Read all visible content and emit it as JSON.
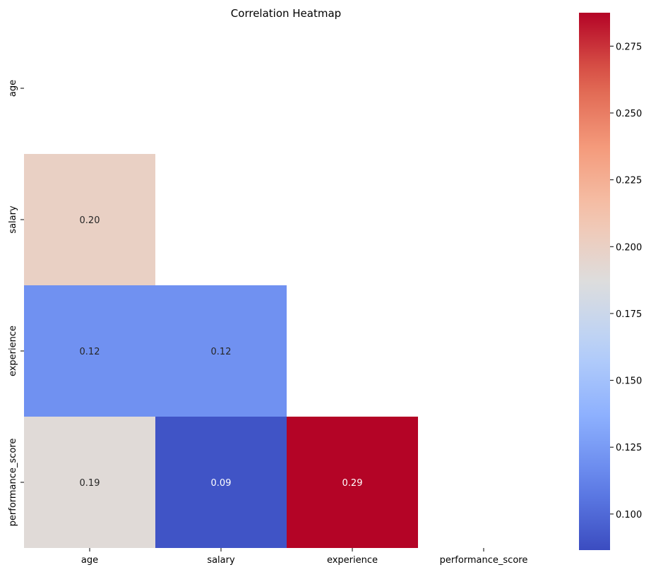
{
  "chart_data": {
    "type": "heatmap",
    "title": "Correlation Heatmap",
    "xlabel": "",
    "ylabel": "",
    "x_categories": [
      "age",
      "salary",
      "experience",
      "performance_score"
    ],
    "y_categories": [
      "age",
      "salary",
      "experience",
      "performance_score"
    ],
    "values": [
      [
        null,
        null,
        null,
        null
      ],
      [
        0.2,
        null,
        null,
        null
      ],
      [
        0.12,
        0.12,
        null,
        null
      ],
      [
        0.19,
        0.09,
        0.29,
        null
      ]
    ],
    "annotations": [
      [
        null,
        null,
        null,
        null
      ],
      [
        "0.20",
        null,
        null,
        null
      ],
      [
        "0.12",
        "0.12",
        null,
        null
      ],
      [
        "0.19",
        "0.09",
        "0.29",
        null
      ]
    ],
    "mask": "upper triangle including diagonal",
    "colormap": "coolwarm",
    "vmin": 0.0865,
    "vmax": 0.2875,
    "colorbar_ticks": [
      "0.100",
      "0.125",
      "0.150",
      "0.175",
      "0.200",
      "0.225",
      "0.250",
      "0.275"
    ],
    "colors": {
      "low": "#3b4cc0",
      "mid": "#dddcdc",
      "high": "#b40426"
    }
  }
}
